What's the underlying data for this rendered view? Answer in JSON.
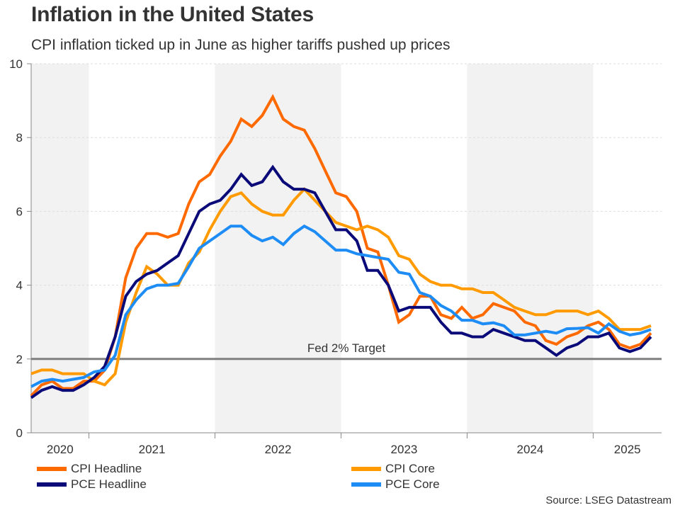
{
  "header": {
    "title": "Inflation in the United States",
    "subtitle": "CPI inflation ticked up in June as higher tariffs pushed up prices"
  },
  "source": "Source: LSEG Datastream",
  "chart_data": {
    "type": "line",
    "title": "Inflation in the United States",
    "subtitle": "CPI inflation ticked up in June as higher tariffs pushed up prices",
    "xlabel": "",
    "ylabel": "",
    "ylim": [
      0,
      10
    ],
    "yticks": [
      "0",
      "2",
      "4",
      "6",
      "8",
      "10"
    ],
    "grid": true,
    "legend_position": "bottom",
    "start_month": "2020-07",
    "end_month": "2025-06",
    "year_labels": [
      "2020",
      "2021",
      "2022",
      "2023",
      "2024",
      "2025"
    ],
    "shaded_years": [
      "2020",
      "2022",
      "2024"
    ],
    "reference_line": {
      "value": 2,
      "label": "Fed 2% Target",
      "color": "#808080"
    },
    "series": [
      {
        "name": "CPI Headline",
        "color": "#FF6A00",
        "values": [
          1.0,
          1.3,
          1.4,
          1.2,
          1.2,
          1.4,
          1.4,
          1.7,
          2.6,
          4.2,
          5.0,
          5.4,
          5.4,
          5.3,
          5.4,
          6.2,
          6.8,
          7.0,
          7.5,
          7.9,
          8.5,
          8.3,
          8.6,
          9.1,
          8.5,
          8.3,
          8.2,
          7.7,
          7.1,
          6.5,
          6.4,
          6.0,
          5.0,
          4.9,
          4.0,
          3.0,
          3.2,
          3.7,
          3.7,
          3.2,
          3.1,
          3.4,
          3.1,
          3.2,
          3.5,
          3.4,
          3.3,
          3.0,
          2.9,
          2.5,
          2.4,
          2.6,
          2.7,
          2.9,
          3.0,
          2.8,
          2.4,
          2.3,
          2.4,
          2.7
        ]
      },
      {
        "name": "CPI Core",
        "color": "#FF9A00",
        "values": [
          1.6,
          1.7,
          1.7,
          1.6,
          1.6,
          1.6,
          1.4,
          1.3,
          1.6,
          3.0,
          3.8,
          4.5,
          4.3,
          4.0,
          4.0,
          4.6,
          4.9,
          5.5,
          6.0,
          6.4,
          6.5,
          6.2,
          6.0,
          5.9,
          5.9,
          6.3,
          6.6,
          6.3,
          6.0,
          5.7,
          5.6,
          5.5,
          5.6,
          5.5,
          5.3,
          4.8,
          4.7,
          4.3,
          4.1,
          4.0,
          4.0,
          3.9,
          3.9,
          3.8,
          3.8,
          3.6,
          3.4,
          3.3,
          3.2,
          3.2,
          3.3,
          3.3,
          3.3,
          3.2,
          3.3,
          3.1,
          2.8,
          2.8,
          2.8,
          2.9
        ]
      },
      {
        "name": "PCE Headline",
        "color": "#0A0A78",
        "values": [
          0.95,
          1.15,
          1.25,
          1.15,
          1.15,
          1.3,
          1.5,
          1.8,
          2.6,
          3.7,
          4.1,
          4.3,
          4.4,
          4.6,
          4.8,
          5.4,
          6.0,
          6.2,
          6.3,
          6.6,
          7.0,
          6.7,
          6.8,
          7.2,
          6.8,
          6.6,
          6.6,
          6.5,
          6.0,
          5.5,
          5.5,
          5.2,
          4.4,
          4.4,
          4.0,
          3.3,
          3.4,
          3.4,
          3.4,
          3.0,
          2.7,
          2.7,
          2.6,
          2.6,
          2.8,
          2.7,
          2.6,
          2.5,
          2.5,
          2.3,
          2.1,
          2.3,
          2.4,
          2.6,
          2.6,
          2.7,
          2.3,
          2.2,
          2.3,
          2.6
        ]
      },
      {
        "name": "PCE Core",
        "color": "#1E8CF5",
        "values": [
          1.25,
          1.4,
          1.45,
          1.4,
          1.45,
          1.5,
          1.65,
          1.7,
          2.1,
          3.2,
          3.6,
          3.9,
          4.0,
          4.0,
          4.05,
          4.5,
          5.0,
          5.2,
          5.4,
          5.6,
          5.6,
          5.35,
          5.2,
          5.3,
          5.1,
          5.4,
          5.6,
          5.45,
          5.2,
          4.95,
          4.95,
          4.85,
          4.8,
          4.75,
          4.7,
          4.35,
          4.3,
          3.8,
          3.7,
          3.45,
          3.3,
          3.05,
          3.05,
          2.95,
          2.98,
          2.9,
          2.65,
          2.65,
          2.7,
          2.75,
          2.7,
          2.82,
          2.83,
          2.85,
          2.7,
          2.95,
          2.75,
          2.65,
          2.7,
          2.8
        ]
      }
    ]
  }
}
